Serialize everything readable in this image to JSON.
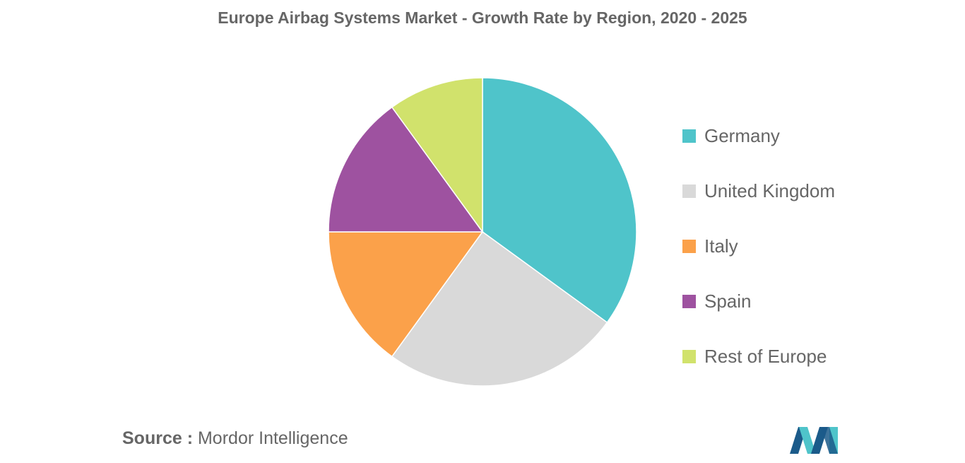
{
  "chart_data": {
    "type": "pie",
    "title": "Europe Airbag Systems Market - Growth Rate by Region, 2020 - 2025",
    "categories": [
      "Germany",
      "United Kingdom",
      "Italy",
      "Spain",
      "Rest of Europe"
    ],
    "values": [
      35,
      25,
      15,
      15,
      10
    ],
    "colors": [
      "#4fc4ca",
      "#d9d9d9",
      "#fba14a",
      "#9e52a0",
      "#d1e26c"
    ],
    "legend_position": "right",
    "start_angle_deg": 0,
    "direction": "clockwise"
  },
  "source": {
    "label": "Source :",
    "text": "Mordor Intelligence"
  },
  "logo": {
    "icon": "mordor-intelligence-logo-icon",
    "colors": [
      "#1b5b8a",
      "#4fc4ca"
    ]
  }
}
